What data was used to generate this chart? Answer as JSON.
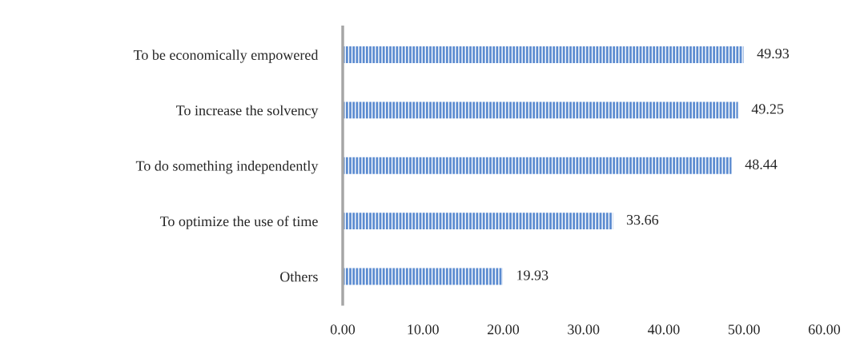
{
  "chart_data": {
    "type": "bar",
    "orientation": "horizontal",
    "categories": [
      "To be economically empowered",
      "To increase the solvency",
      "To do something independently",
      "To optimize the use of time",
      "Others"
    ],
    "values": [
      49.93,
      49.25,
      48.44,
      33.66,
      19.93
    ],
    "color": "#5b8bd0",
    "xlim": [
      0,
      60
    ],
    "xticks": [
      {
        "value": 0,
        "label": "0.00"
      },
      {
        "value": 10,
        "label": "10.00"
      },
      {
        "value": 20,
        "label": "20.00"
      },
      {
        "value": 30,
        "label": "30.00"
      },
      {
        "value": 40,
        "label": "40.00"
      },
      {
        "value": 50,
        "label": "50.00"
      },
      {
        "value": 60,
        "label": "60.00"
      }
    ],
    "data_labels": true,
    "grid": false,
    "legend": false
  }
}
